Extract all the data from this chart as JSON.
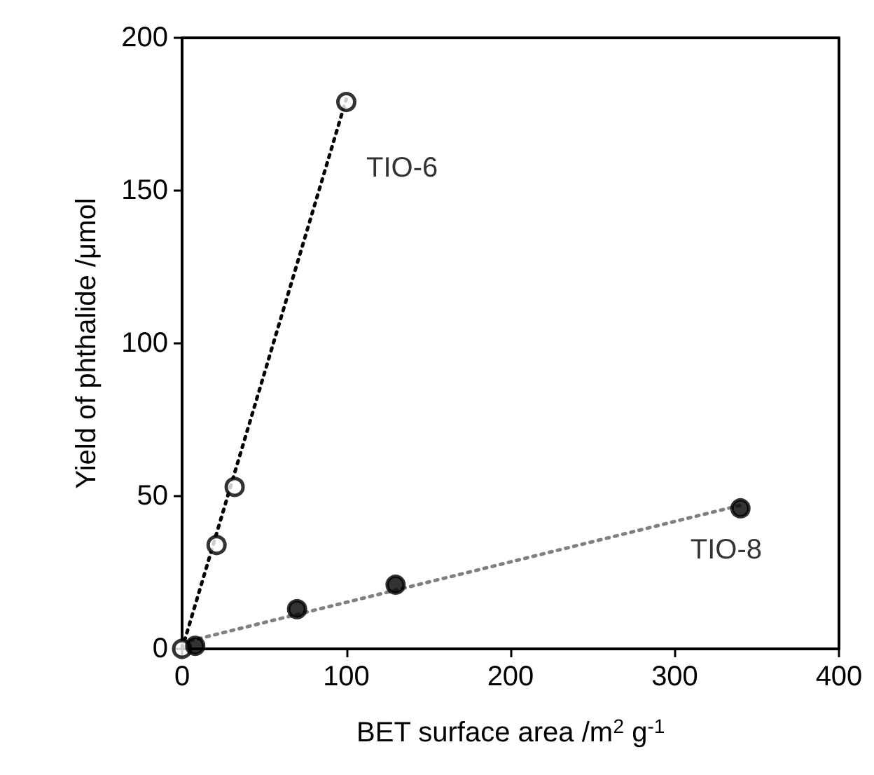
{
  "chart_data": {
    "type": "scatter",
    "xlabel": "BET surface area /m$^{2}$ g$^{-1}$",
    "ylabel": "Yield of phthalide /μmol",
    "xlim": [
      0,
      400
    ],
    "xticks": [
      0,
      100,
      200,
      300,
      400
    ],
    "ylim": [
      0,
      200
    ],
    "yticks": [
      0,
      50,
      100,
      150,
      200
    ],
    "grid": false,
    "series": [
      {
        "type": "line",
        "x": [
          0,
          100
        ],
        "values": [
          0,
          180
        ],
        "color": "#000000",
        "line_style": "dotted",
        "marker": "none"
      },
      {
        "type": "line",
        "x": [
          0,
          340
        ],
        "values": [
          2,
          47
        ],
        "color": "#808080",
        "line_style": "dotted",
        "marker": "none"
      },
      {
        "name": "TIO-6",
        "x": [
          0,
          21,
          32,
          100
        ],
        "values": [
          0,
          34,
          53,
          179
        ],
        "color": "#ffffff",
        "marker": "circle"
      },
      {
        "name": "TIO-8",
        "x": [
          8,
          70,
          130,
          340
        ],
        "values": [
          1,
          13,
          21,
          46
        ],
        "color": "#000000",
        "marker": "circle"
      }
    ]
  }
}
